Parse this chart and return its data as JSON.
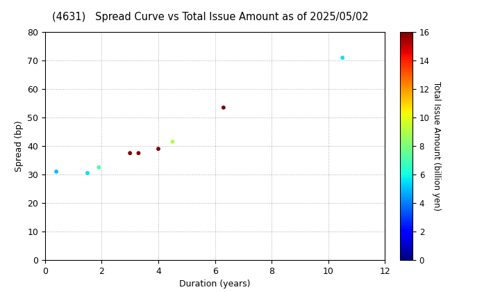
{
  "title": "(4631)   Spread Curve vs Total Issue Amount as of 2025/05/02",
  "xlabel": "Duration (years)",
  "ylabel": "Spread (bp)",
  "colorbar_label": "Total Issue Amount (billion yen)",
  "xlim": [
    0,
    12
  ],
  "ylim": [
    0,
    80
  ],
  "xticks": [
    0,
    2,
    4,
    6,
    8,
    10,
    12
  ],
  "yticks": [
    0,
    10,
    20,
    30,
    40,
    50,
    60,
    70,
    80
  ],
  "points": [
    {
      "duration": 0.4,
      "spread": 31,
      "amount": 5.0
    },
    {
      "duration": 1.5,
      "spread": 30.5,
      "amount": 5.5
    },
    {
      "duration": 1.9,
      "spread": 32.5,
      "amount": 7.0
    },
    {
      "duration": 3.0,
      "spread": 37.5,
      "amount": 16.0
    },
    {
      "duration": 3.3,
      "spread": 37.5,
      "amount": 16.0
    },
    {
      "duration": 4.0,
      "spread": 39.0,
      "amount": 16.0
    },
    {
      "duration": 4.5,
      "spread": 41.5,
      "amount": 9.0
    },
    {
      "duration": 6.3,
      "spread": 53.5,
      "amount": 16.0
    },
    {
      "duration": 10.5,
      "spread": 71.0,
      "amount": 5.5
    }
  ],
  "cmap": "jet",
  "vmin": 0,
  "vmax": 16,
  "marker_size": 18,
  "background_color": "#ffffff",
  "grid_color": "#aaaaaa",
  "grid_style": "dotted",
  "title_fontsize": 10.5,
  "axis_fontsize": 9,
  "colorbar_fontsize": 8.5
}
